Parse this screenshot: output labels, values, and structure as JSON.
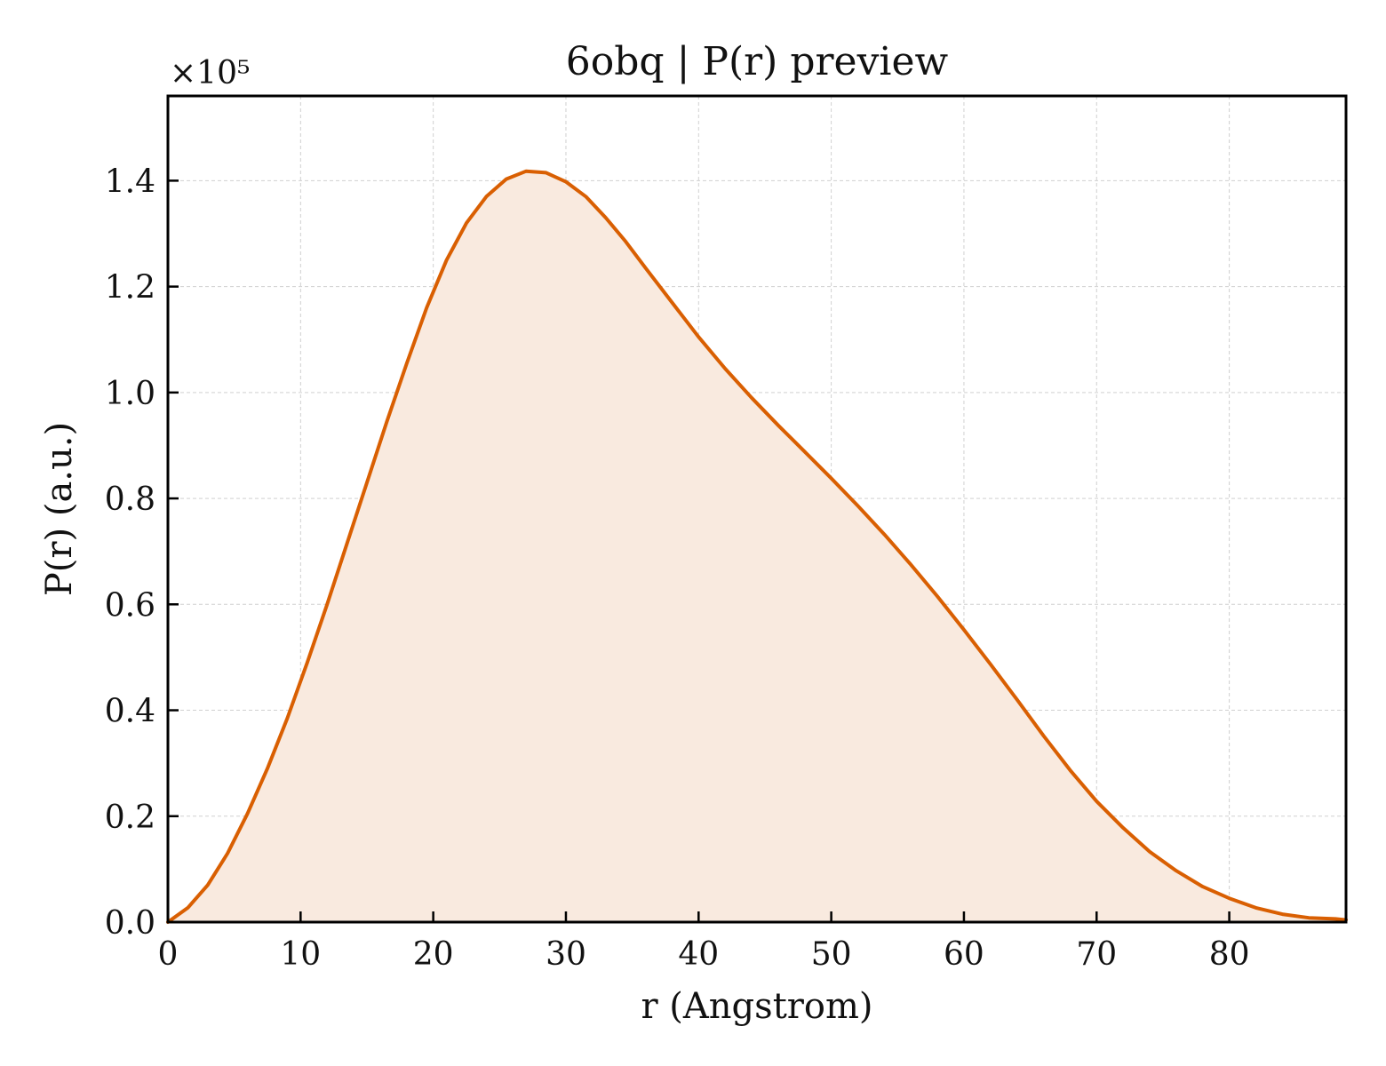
{
  "chart_data": {
    "type": "area",
    "title": "6obq | P(r) preview",
    "xlabel": "r (Angstrom)",
    "ylabel": "P(r) (a.u.)",
    "y_multiplier_label": "×10⁵",
    "xlim": [
      0,
      88.8
    ],
    "ylim": [
      0,
      1.56
    ],
    "x_ticks": [
      0,
      10,
      20,
      30,
      40,
      50,
      60,
      70,
      80
    ],
    "x_tick_labels": [
      "0",
      "10",
      "20",
      "30",
      "40",
      "50",
      "60",
      "70",
      "80"
    ],
    "y_ticks": [
      0.0,
      0.2,
      0.4,
      0.6,
      0.8,
      1.0,
      1.2,
      1.4
    ],
    "y_tick_labels": [
      "0.0",
      "0.2",
      "0.4",
      "0.6",
      "0.8",
      "1.0",
      "1.2",
      "1.4"
    ],
    "grid": true,
    "colors": {
      "line": "#d95f02",
      "fill": "#f9eadf",
      "grid": "#d0d0d0",
      "axes": "#000000"
    },
    "series": [
      {
        "x": [
          0,
          1.5,
          3.0,
          4.5,
          6.0,
          7.5,
          9.0,
          10.5,
          12.0,
          13.5,
          15.0,
          16.5,
          18.0,
          19.5,
          21.0,
          22.5,
          24.0,
          25.5,
          27.0,
          28.5,
          30.0,
          31.5,
          33.0,
          34.5,
          36.0,
          38.0,
          40.0,
          42.0,
          44.0,
          46.0,
          48.0,
          50.0,
          52.0,
          54.0,
          56.0,
          58.0,
          60.0,
          62.0,
          64.0,
          66.0,
          68.0,
          70.0,
          72.0,
          74.0,
          76.0,
          78.0,
          80.0,
          82.0,
          84.0,
          86.0,
          88.0,
          88.8
        ],
        "y": [
          0.0,
          0.027,
          0.07,
          0.13,
          0.205,
          0.29,
          0.385,
          0.49,
          0.6,
          0.715,
          0.83,
          0.945,
          1.055,
          1.16,
          1.25,
          1.32,
          1.37,
          1.403,
          1.418,
          1.415,
          1.398,
          1.37,
          1.33,
          1.285,
          1.235,
          1.17,
          1.105,
          1.045,
          0.99,
          0.938,
          0.888,
          0.838,
          0.786,
          0.732,
          0.675,
          0.615,
          0.552,
          0.487,
          0.42,
          0.352,
          0.287,
          0.228,
          0.178,
          0.133,
          0.097,
          0.067,
          0.045,
          0.027,
          0.015,
          0.008,
          0.006,
          0.004
        ]
      }
    ]
  }
}
